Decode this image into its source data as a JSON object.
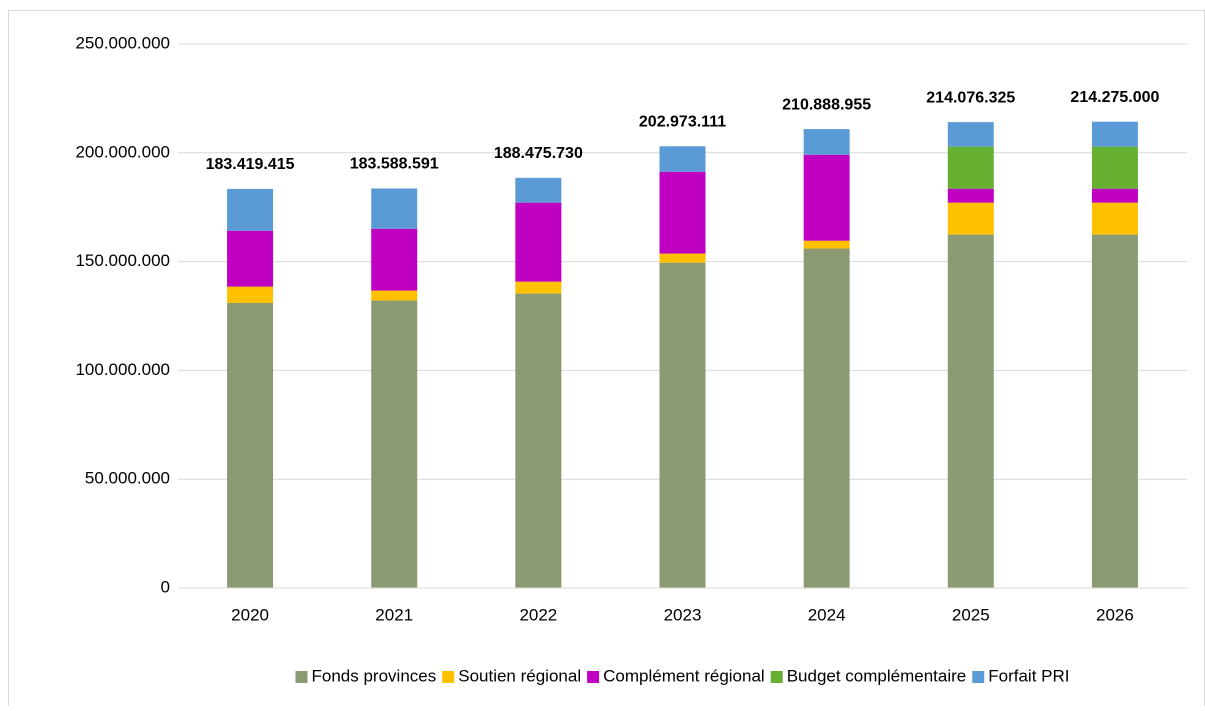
{
  "chart_data": {
    "type": "stacked_bar",
    "categories": [
      "2020",
      "2021",
      "2022",
      "2023",
      "2024",
      "2025",
      "2026"
    ],
    "series": [
      {
        "name": "Fonds provinces",
        "color": "#8a9a73",
        "values": [
          131000000,
          132100000,
          135300000,
          149500000,
          156000000,
          162400000,
          162400000
        ]
      },
      {
        "name": "Soutien régional",
        "color": "#ffc000",
        "values": [
          7500000,
          4600000,
          5500000,
          4200000,
          3600000,
          14700000,
          14700000
        ]
      },
      {
        "name": "Complément régional",
        "color": "#c000c0",
        "values": [
          25700000,
          28400000,
          36300000,
          37600000,
          39500000,
          6400000,
          6400000
        ]
      },
      {
        "name": "Budget complémentaire",
        "color": "#66b032",
        "values": [
          0,
          0,
          0,
          0,
          0,
          19300000,
          19300000
        ]
      },
      {
        "name": "Forfait PRI",
        "color": "#5b9bd5",
        "values": [
          19200000,
          18500000,
          11400000,
          11700000,
          11800000,
          11300000,
          11500000
        ]
      }
    ],
    "totals": {
      "values": [
        183419415,
        183588591,
        188475730,
        202973111,
        210888955,
        214076325,
        214275000
      ],
      "value_labels": [
        "183.419.415",
        "183.588.591",
        "188.475.730",
        "202.973.111",
        "210.888.955",
        "214.076.325",
        "214.275.000"
      ]
    },
    "ylim": [
      0,
      250000000
    ],
    "yticks": [
      {
        "value": 0,
        "label": "0"
      },
      {
        "value": 50000000,
        "label": "50.000.000"
      },
      {
        "value": 100000000,
        "label": "100.000.000"
      },
      {
        "value": 150000000,
        "label": "150.000.000"
      },
      {
        "value": 200000000,
        "label": "200.000.000"
      },
      {
        "value": 250000000,
        "label": "250.000.000"
      }
    ],
    "grid": true,
    "legend": "bottom"
  }
}
